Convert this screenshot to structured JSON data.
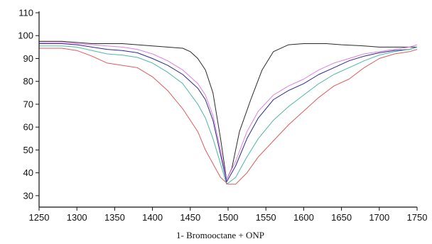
{
  "chart_data": {
    "type": "line",
    "title": "",
    "xlabel": "1- Bromooctane + ONP",
    "ylabel": "",
    "xlim": [
      1250,
      1750
    ],
    "ylim": [
      25,
      110
    ],
    "x_ticks": [
      1250,
      1300,
      1350,
      1400,
      1450,
      1500,
      1550,
      1600,
      1650,
      1700,
      1750
    ],
    "y_ticks": [
      30,
      40,
      50,
      60,
      70,
      80,
      90,
      100,
      110
    ],
    "grid": false,
    "legend": "none",
    "series": [
      {
        "color": "#2a2a2a",
        "points": [
          [
            1250,
            97.5
          ],
          [
            1280,
            97.5
          ],
          [
            1300,
            97
          ],
          [
            1320,
            96.5
          ],
          [
            1340,
            96.5
          ],
          [
            1360,
            96.5
          ],
          [
            1380,
            96
          ],
          [
            1400,
            95.5
          ],
          [
            1420,
            95
          ],
          [
            1440,
            94.5
          ],
          [
            1450,
            93
          ],
          [
            1460,
            90
          ],
          [
            1470,
            85
          ],
          [
            1480,
            75
          ],
          [
            1490,
            55
          ],
          [
            1498,
            37
          ],
          [
            1505,
            42
          ],
          [
            1515,
            58
          ],
          [
            1530,
            72
          ],
          [
            1545,
            85
          ],
          [
            1560,
            93
          ],
          [
            1580,
            96
          ],
          [
            1600,
            96.5
          ],
          [
            1630,
            96.5
          ],
          [
            1650,
            96
          ],
          [
            1680,
            95.5
          ],
          [
            1700,
            95
          ],
          [
            1720,
            95
          ],
          [
            1740,
            95
          ],
          [
            1750,
            95
          ]
        ]
      },
      {
        "color": "#e080e0",
        "points": [
          [
            1250,
            97
          ],
          [
            1280,
            97
          ],
          [
            1300,
            96.5
          ],
          [
            1320,
            96
          ],
          [
            1340,
            95.5
          ],
          [
            1360,
            95
          ],
          [
            1380,
            94
          ],
          [
            1400,
            92
          ],
          [
            1420,
            89
          ],
          [
            1440,
            85
          ],
          [
            1460,
            79
          ],
          [
            1470,
            74
          ],
          [
            1480,
            65
          ],
          [
            1490,
            50
          ],
          [
            1498,
            37
          ],
          [
            1510,
            45
          ],
          [
            1525,
            58
          ],
          [
            1540,
            67
          ],
          [
            1560,
            74
          ],
          [
            1580,
            78
          ],
          [
            1600,
            81
          ],
          [
            1620,
            85
          ],
          [
            1640,
            88
          ],
          [
            1660,
            90
          ],
          [
            1680,
            92
          ],
          [
            1700,
            93
          ],
          [
            1720,
            94
          ],
          [
            1740,
            95
          ],
          [
            1750,
            96
          ]
        ]
      },
      {
        "color": "#2a2a8e",
        "points": [
          [
            1250,
            96.5
          ],
          [
            1280,
            96.5
          ],
          [
            1300,
            96
          ],
          [
            1320,
            95
          ],
          [
            1340,
            94
          ],
          [
            1360,
            93.5
          ],
          [
            1380,
            92.5
          ],
          [
            1400,
            90
          ],
          [
            1420,
            87
          ],
          [
            1440,
            83
          ],
          [
            1460,
            77
          ],
          [
            1470,
            72
          ],
          [
            1480,
            63
          ],
          [
            1490,
            48
          ],
          [
            1498,
            36
          ],
          [
            1510,
            43
          ],
          [
            1525,
            55
          ],
          [
            1540,
            64
          ],
          [
            1560,
            72
          ],
          [
            1580,
            76
          ],
          [
            1600,
            79
          ],
          [
            1620,
            83
          ],
          [
            1640,
            86
          ],
          [
            1660,
            89
          ],
          [
            1680,
            91
          ],
          [
            1700,
            92.5
          ],
          [
            1720,
            93.5
          ],
          [
            1740,
            94
          ],
          [
            1750,
            95
          ]
        ]
      },
      {
        "color": "#4fb8a8",
        "points": [
          [
            1250,
            95.5
          ],
          [
            1280,
            95.5
          ],
          [
            1300,
            95
          ],
          [
            1320,
            93.5
          ],
          [
            1340,
            92
          ],
          [
            1360,
            91.5
          ],
          [
            1380,
            90.5
          ],
          [
            1400,
            88
          ],
          [
            1420,
            84
          ],
          [
            1440,
            79
          ],
          [
            1460,
            70
          ],
          [
            1470,
            64
          ],
          [
            1480,
            55
          ],
          [
            1490,
            44
          ],
          [
            1498,
            35
          ],
          [
            1510,
            38
          ],
          [
            1525,
            47
          ],
          [
            1540,
            55
          ],
          [
            1560,
            63
          ],
          [
            1580,
            69
          ],
          [
            1600,
            74
          ],
          [
            1620,
            79
          ],
          [
            1640,
            83
          ],
          [
            1660,
            86
          ],
          [
            1680,
            89
          ],
          [
            1700,
            91.5
          ],
          [
            1720,
            93
          ],
          [
            1740,
            94
          ],
          [
            1750,
            95
          ]
        ]
      },
      {
        "color": "#e05a5a",
        "points": [
          [
            1250,
            94.5
          ],
          [
            1280,
            94.5
          ],
          [
            1300,
            93.5
          ],
          [
            1320,
            91
          ],
          [
            1340,
            88
          ],
          [
            1360,
            87
          ],
          [
            1380,
            86
          ],
          [
            1400,
            82
          ],
          [
            1420,
            76
          ],
          [
            1440,
            68
          ],
          [
            1460,
            58
          ],
          [
            1470,
            50
          ],
          [
            1480,
            44
          ],
          [
            1490,
            38
          ],
          [
            1500,
            35
          ],
          [
            1510,
            35
          ],
          [
            1525,
            40
          ],
          [
            1540,
            47
          ],
          [
            1560,
            54
          ],
          [
            1580,
            61
          ],
          [
            1600,
            67
          ],
          [
            1620,
            73
          ],
          [
            1640,
            78
          ],
          [
            1660,
            81
          ],
          [
            1680,
            86
          ],
          [
            1700,
            90
          ],
          [
            1720,
            92
          ],
          [
            1740,
            93
          ],
          [
            1750,
            94
          ]
        ]
      }
    ]
  }
}
